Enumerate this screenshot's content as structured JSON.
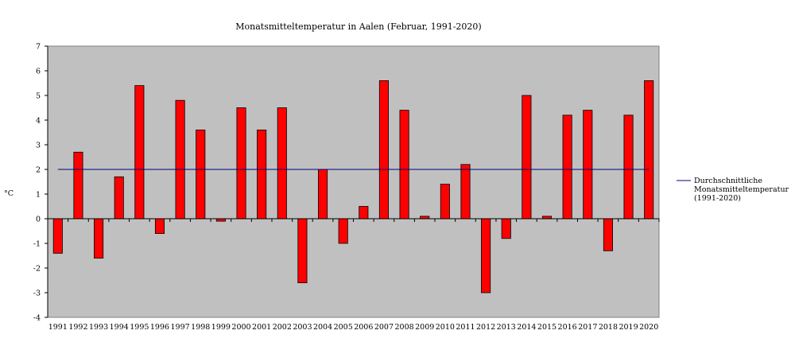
{
  "chart_data": {
    "type": "bar",
    "title": "Monatsmitteltemperatur in Aalen (Februar, 1991-2020)",
    "xlabel": "",
    "ylabel": "°C",
    "ylim": [
      -4,
      7
    ],
    "yticks": [
      -4,
      -3,
      -2,
      -1,
      0,
      1,
      2,
      3,
      4,
      5,
      6,
      7
    ],
    "grid": false,
    "categories": [
      "1991",
      "1992",
      "1993",
      "1994",
      "1995",
      "1996",
      "1997",
      "1998",
      "1999",
      "2000",
      "2001",
      "2002",
      "2003",
      "2004",
      "2005",
      "2006",
      "2007",
      "2008",
      "2009",
      "2010",
      "2011",
      "2012",
      "2013",
      "2014",
      "2015",
      "2016",
      "2017",
      "2018",
      "2019",
      "2020"
    ],
    "series": [
      {
        "type": "bar",
        "color": "#ff0000",
        "values": [
          -1.4,
          2.7,
          -1.6,
          1.7,
          5.4,
          -0.6,
          4.8,
          3.6,
          -0.1,
          4.5,
          3.6,
          4.5,
          -2.6,
          2.0,
          -1.0,
          0.5,
          5.6,
          4.4,
          0.1,
          1.4,
          2.2,
          -3.0,
          -0.8,
          5.0,
          0.1,
          4.2,
          4.4,
          -1.3,
          4.2,
          5.6
        ]
      },
      {
        "type": "line",
        "name": "Durchschnittliche Monatsmitteltemperatur (1991-2020)",
        "legend_lines": [
          "Durchschnittliche",
          "Monatsmitteltemperatur",
          "(1991-2020)"
        ],
        "color": "#000080",
        "value": 2.0
      }
    ],
    "legend_position": "right",
    "plot_background": "#c0c0c0"
  }
}
